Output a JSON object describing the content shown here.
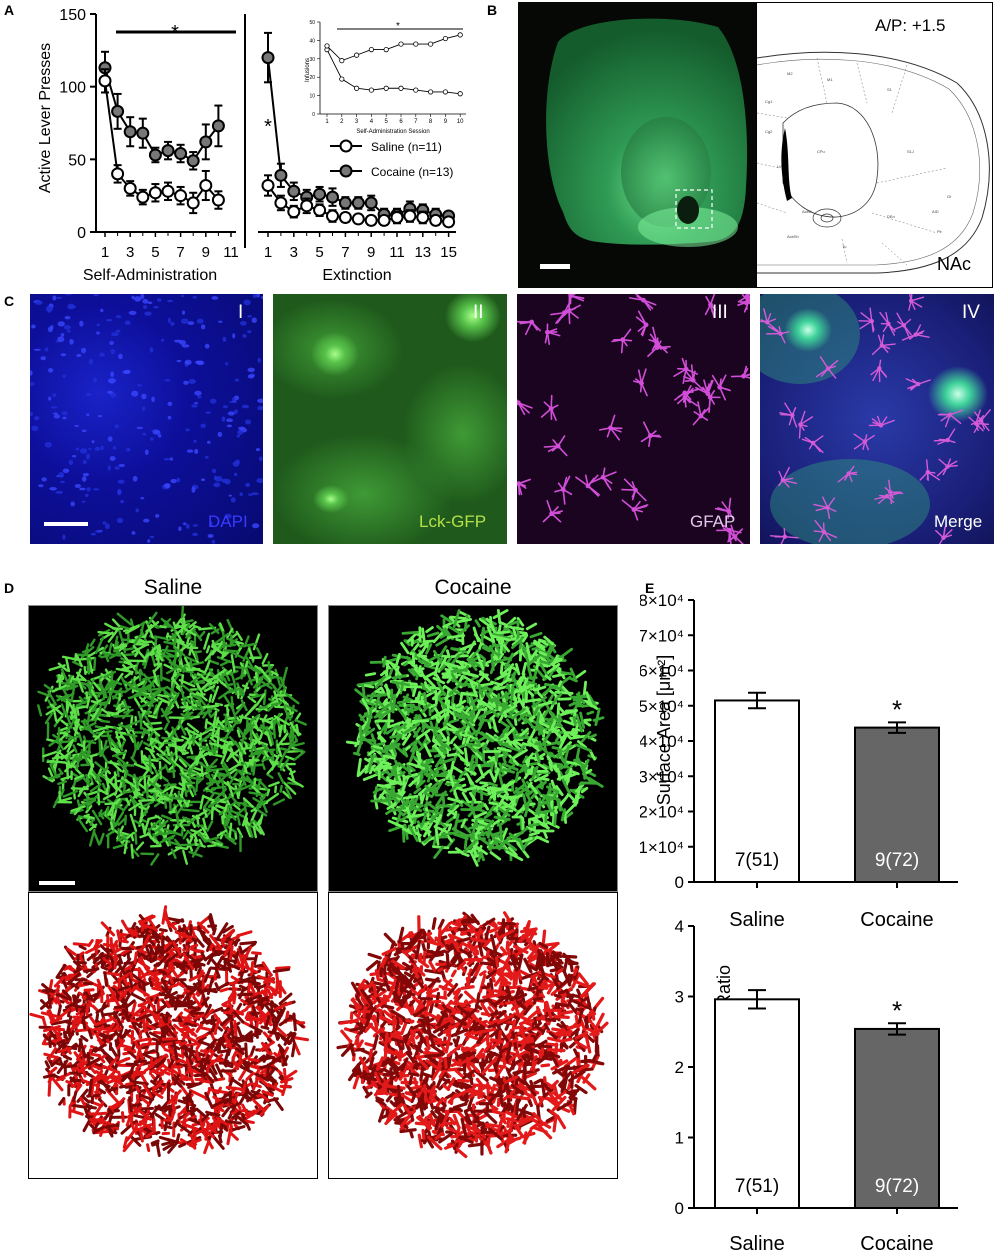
{
  "panel_letters": {
    "a": "A",
    "b": "B",
    "c": "C",
    "d": "D",
    "e": "E"
  },
  "panelA": {
    "ylabel": "Active Lever Presses",
    "sa_label": "Self-Administration",
    "ext_label": "Extinction",
    "star_top": "*",
    "star_ext": "*",
    "legend_saline": "Saline (n=11)",
    "legend_cocaine": "Cocaine (n=13)",
    "yticks": [
      "0",
      "50",
      "100",
      "150"
    ],
    "sa_xticks": [
      "1",
      "3",
      "5",
      "7",
      "9",
      "11"
    ],
    "ext_xticks": [
      "1",
      "3",
      "5",
      "7",
      "9",
      "11",
      "13",
      "15"
    ],
    "inset": {
      "ylabel": "Infusions",
      "xlabel": "Self-Administration Session",
      "star": "*",
      "yticks": [
        "0",
        "10",
        "20",
        "30",
        "40",
        "50"
      ],
      "xticks": [
        "1",
        "2",
        "3",
        "4",
        "5",
        "6",
        "7",
        "8",
        "9",
        "10"
      ]
    }
  },
  "panelB": {
    "coord": "A/P: +1.5",
    "region": "NAc"
  },
  "panelC": {
    "tiles": [
      {
        "roman": "I",
        "label": "DAPI",
        "label_color": "#3a3aff"
      },
      {
        "roman": "II",
        "label": "Lck-GFP",
        "label_color": "#b6e04a"
      },
      {
        "roman": "III",
        "label": "GFAP",
        "label_color": "#e6c8ee"
      },
      {
        "roman": "IV",
        "label": "Merge",
        "label_color": "#ffffff"
      }
    ]
  },
  "panelD": {
    "saline_title": "Saline",
    "cocaine_title": "Cocaine"
  },
  "panelE": {
    "top_ylabel": "Surface Area [μm²]",
    "bottom_ylabel": "Area:Volume Ratio",
    "saline_label": "Saline",
    "cocaine_label": "Cocaine",
    "star": "*",
    "top_yticks": [
      "0",
      "1×10⁴",
      "2×10⁴",
      "3×10⁴",
      "4×10⁴",
      "5×10⁴",
      "6×10⁴",
      "7×10⁴",
      "8×10⁴"
    ],
    "bottom_yticks": [
      "0",
      "1",
      "2",
      "3",
      "4"
    ],
    "saline_n": "7(51)",
    "cocaine_n": "9(72)"
  },
  "chart_data": [
    {
      "type": "line",
      "panel": "A (self-administration)",
      "xlabel": "Self-Administration",
      "ylabel": "Active Lever Presses",
      "ylim": [
        0,
        150
      ],
      "x": [
        1,
        2,
        3,
        4,
        5,
        6,
        7,
        8,
        9,
        10
      ],
      "series": [
        {
          "name": "Saline (n=11)",
          "values": [
            104,
            40,
            30,
            24,
            27,
            28,
            25,
            20,
            32,
            22
          ],
          "errors": [
            8,
            6,
            5,
            5,
            6,
            6,
            6,
            7,
            10,
            6
          ],
          "color": "#ffffff"
        },
        {
          "name": "Cocaine (n=13)",
          "values": [
            113,
            83,
            69,
            68,
            53,
            56,
            54,
            49,
            62,
            73
          ],
          "errors": [
            11,
            12,
            10,
            10,
            5,
            6,
            6,
            6,
            12,
            14
          ],
          "color": "#777777"
        }
      ]
    },
    {
      "type": "line",
      "panel": "A (extinction)",
      "xlabel": "Extinction",
      "ylim": [
        0,
        150
      ],
      "x": [
        1,
        2,
        3,
        4,
        5,
        6,
        7,
        8,
        9,
        10,
        11,
        12,
        13,
        14,
        15
      ],
      "series": [
        {
          "name": "Saline (n=11)",
          "values": [
            32,
            20,
            14,
            18,
            15,
            11,
            10,
            9,
            8,
            8,
            10,
            11,
            10,
            8,
            7
          ],
          "errors": [
            7,
            5,
            4,
            5,
            4,
            4,
            3,
            3,
            3,
            3,
            4,
            4,
            4,
            3,
            3
          ],
          "color": "#ffffff"
        },
        {
          "name": "Cocaine (n=13)",
          "values": [
            120,
            39,
            28,
            24,
            26,
            24,
            20,
            20,
            20,
            12,
            12,
            16,
            15,
            12,
            11
          ],
          "errors": [
            17,
            8,
            6,
            5,
            5,
            6,
            4,
            4,
            5,
            4,
            4,
            5,
            4,
            4,
            3
          ],
          "color": "#777777"
        }
      ]
    },
    {
      "type": "line",
      "panel": "A inset",
      "xlabel": "Self-Administration Session",
      "ylabel": "Infusions",
      "ylim": [
        0,
        50
      ],
      "x": [
        1,
        2,
        3,
        4,
        5,
        6,
        7,
        8,
        9,
        10
      ],
      "series": [
        {
          "name": "Saline (n=11)",
          "values": [
            35,
            19,
            14,
            13,
            14,
            14,
            13,
            12,
            12,
            11
          ]
        },
        {
          "name": "Cocaine (n=13)",
          "values": [
            37,
            29,
            32,
            35,
            35,
            38,
            38,
            38,
            41,
            43
          ]
        }
      ]
    },
    {
      "type": "bar",
      "panel": "E (top)",
      "categories": [
        "Saline",
        "Cocaine"
      ],
      "values": [
        51500,
        43800
      ],
      "errors": [
        2200,
        1500
      ],
      "ylabel": "Surface Area [μm²]",
      "ylim": [
        0,
        80000
      ],
      "colors": [
        "#ffffff",
        "#666666"
      ]
    },
    {
      "type": "bar",
      "panel": "E (bottom)",
      "categories": [
        "Saline",
        "Cocaine"
      ],
      "values": [
        2.96,
        2.54
      ],
      "errors": [
        0.13,
        0.08
      ],
      "ylabel": "Area:Volume Ratio",
      "ylim": [
        0,
        4
      ],
      "colors": [
        "#ffffff",
        "#666666"
      ]
    }
  ]
}
